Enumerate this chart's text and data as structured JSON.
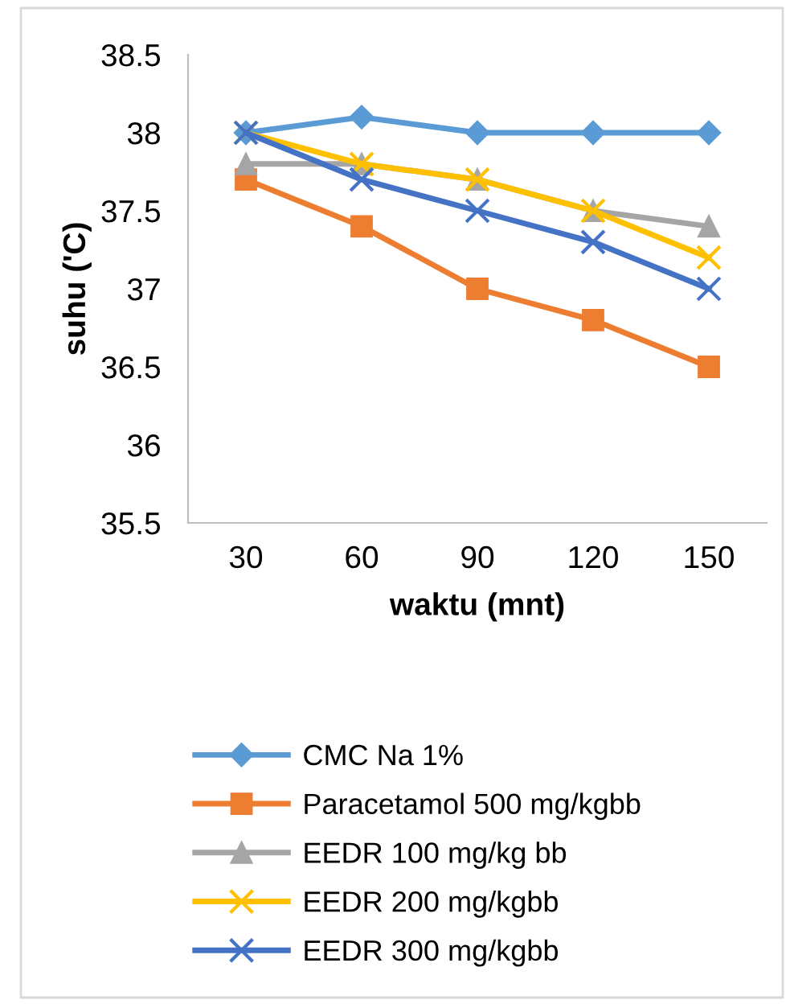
{
  "chart_data": {
    "type": "line",
    "xlabel": "waktu (mnt)",
    "ylabel": "suhu ('C)",
    "categories": [
      "30",
      "60",
      "90",
      "120",
      "150"
    ],
    "ylim": [
      35.5,
      38.5
    ],
    "yticks": [
      35.5,
      36,
      36.5,
      37,
      37.5,
      38,
      38.5
    ],
    "grid": false,
    "legend": "bottom",
    "series": [
      {
        "name": "CMC Na 1%",
        "color": "#5b9bd5",
        "marker": "diamond",
        "values": [
          38,
          38.1,
          38,
          38,
          38
        ]
      },
      {
        "name": "Paracetamol 500 mg/kgbb",
        "color": "#ed7d31",
        "marker": "square",
        "values": [
          37.7,
          37.4,
          37.0,
          36.8,
          36.5
        ]
      },
      {
        "name": "EEDR 100 mg/kg bb",
        "color": "#a5a5a5",
        "marker": "triangle",
        "values": [
          37.8,
          37.8,
          37.7,
          37.5,
          37.4
        ]
      },
      {
        "name": "EEDR 200 mg/kgbb",
        "color": "#ffc000",
        "marker": "cross",
        "values": [
          38,
          37.8,
          37.7,
          37.5,
          37.2
        ]
      },
      {
        "name": "EEDR 300 mg/kgbb",
        "color": "#4472c4",
        "marker": "cross",
        "values": [
          38,
          37.7,
          37.5,
          37.3,
          37.0
        ]
      }
    ]
  }
}
